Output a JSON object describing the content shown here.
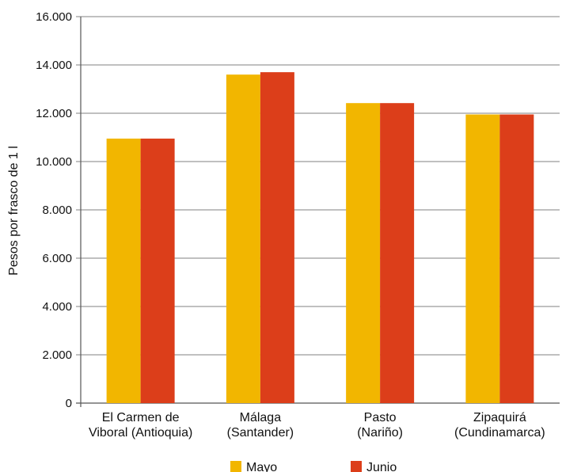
{
  "chart_data": {
    "type": "bar",
    "ylabel": "Pesos por frasco de 1 l",
    "xlabel": "",
    "ylim": [
      0,
      16000
    ],
    "yticks": [
      0,
      2000,
      4000,
      6000,
      8000,
      10000,
      12000,
      14000,
      16000
    ],
    "ytick_labels": [
      "0",
      "2.000",
      "4.000",
      "6.000",
      "8.000",
      "10.000",
      "12.000",
      "14.000",
      "16.000"
    ],
    "grid": true,
    "legend_position": "bottom",
    "categories": [
      [
        "El Carmen de",
        "Viboral (Antioquia)"
      ],
      [
        "Málaga",
        "(Santander)"
      ],
      [
        "Pasto",
        "(Nariño)"
      ],
      [
        "Zipaquirá",
        "(Cundinamarca)"
      ]
    ],
    "series": [
      {
        "name": "Mayo",
        "color": "#F2B600",
        "values": [
          10950,
          13600,
          12420,
          11950
        ]
      },
      {
        "name": "Junio",
        "color": "#DC3E1A",
        "values": [
          10950,
          13700,
          12420,
          11950
        ]
      }
    ]
  }
}
